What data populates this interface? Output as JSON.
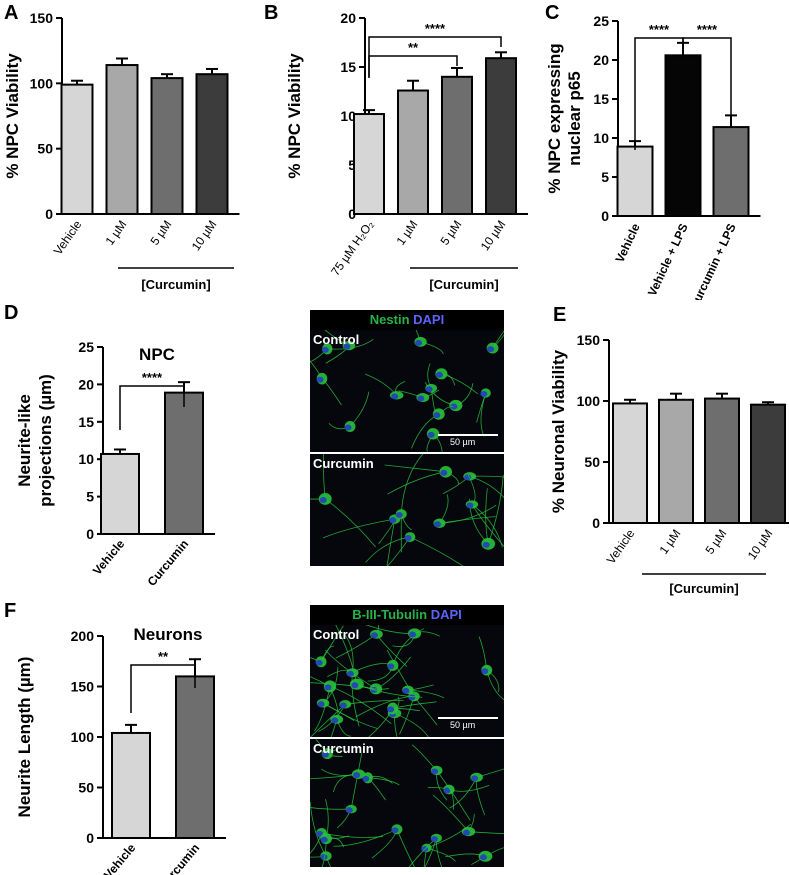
{
  "panels": {
    "A": "A",
    "B": "B",
    "C": "C",
    "D": "D",
    "E": "E",
    "F": "F"
  },
  "micro_D": {
    "header_green": "Nestin",
    "header_blue": "DAPI",
    "top_label": "Control",
    "bottom_label": "Curcumin",
    "scale_label": "50 µm"
  },
  "micro_F": {
    "header_green": "B-III-Tubulin",
    "header_blue": "DAPI",
    "top_label": "Control",
    "bottom_label": "Curcumin",
    "scale_label": "50 µm"
  },
  "colors": {
    "light": "#d6d6d6",
    "mid_light": "#a8a8a8",
    "mid": "#6e6e6e",
    "dark": "#3c3c3c",
    "black": "#050505",
    "nucleus": "#2236c8",
    "neurite": "#28c23c"
  },
  "chart_data": [
    {
      "id": "A",
      "type": "bar",
      "title": "",
      "ylabel": "% NPC Viability",
      "xlabel": "",
      "ylim": [
        0,
        150
      ],
      "yticks": [
        0,
        50,
        100,
        150
      ],
      "categories": [
        "Vehicle",
        "1 µM",
        "5 µM",
        "10 µM"
      ],
      "values": [
        99,
        114,
        104,
        107
      ],
      "errors": [
        3,
        5,
        3,
        4
      ],
      "bar_colors": [
        "#d6d6d6",
        "#a8a8a8",
        "#6e6e6e",
        "#3c3c3c"
      ],
      "bracket_label": "[Curcumin]",
      "significance": []
    },
    {
      "id": "B",
      "type": "bar",
      "title": "",
      "ylabel": "% NPC Viability",
      "xlabel": "",
      "ylim": [
        0,
        20
      ],
      "yticks": [
        0,
        5,
        10,
        15,
        20
      ],
      "categories": [
        "75 µM H₂O₂",
        "1 µM",
        "5 µM",
        "10 µM"
      ],
      "values": [
        10.2,
        12.6,
        14,
        15.9
      ],
      "errors": [
        0.4,
        1.0,
        0.9,
        0.6
      ],
      "bar_colors": [
        "#d6d6d6",
        "#a8a8a8",
        "#6e6e6e",
        "#3c3c3c"
      ],
      "bracket_label": "[Curcumin]",
      "significance": [
        {
          "from": 0,
          "to": 2,
          "label": "**"
        },
        {
          "from": 0,
          "to": 3,
          "label": "****"
        }
      ]
    },
    {
      "id": "C",
      "type": "bar",
      "title": "",
      "ylabel": "% NPC expressing nuclear p65",
      "xlabel": "",
      "ylim": [
        0,
        25
      ],
      "yticks": [
        0,
        5,
        10,
        15,
        20,
        25
      ],
      "categories": [
        "Vehicle",
        "Vehicle + LPS",
        "Curcumin + LPS"
      ],
      "values": [
        8.9,
        20.6,
        11.4
      ],
      "errors": [
        0.7,
        1.6,
        1.5
      ],
      "bar_colors": [
        "#d6d6d6",
        "#050505",
        "#6e6e6e"
      ],
      "bracket_label": "",
      "significance": [
        {
          "from": 0,
          "to": 1,
          "label": "****"
        },
        {
          "from": 1,
          "to": 2,
          "label": "****"
        }
      ]
    },
    {
      "id": "D",
      "type": "bar",
      "title": "NPC",
      "ylabel": "Neurite-like projections (µm)",
      "xlabel": "",
      "ylim": [
        0,
        25
      ],
      "yticks": [
        0,
        5,
        10,
        15,
        20,
        25
      ],
      "categories": [
        "Vehicle",
        "Curcumin"
      ],
      "values": [
        10.7,
        18.9
      ],
      "errors": [
        0.6,
        1.4
      ],
      "bar_colors": [
        "#d6d6d6",
        "#6e6e6e"
      ],
      "bracket_label": "",
      "significance": [
        {
          "from": 0,
          "to": 1,
          "label": "****"
        }
      ]
    },
    {
      "id": "E",
      "type": "bar",
      "title": "",
      "ylabel": "% Neuronal Viability",
      "xlabel": "",
      "ylim": [
        0,
        150
      ],
      "yticks": [
        0,
        50,
        100,
        150
      ],
      "categories": [
        "Vehicle",
        "1 µM",
        "5 µM",
        "10 µM"
      ],
      "values": [
        98,
        101,
        102,
        97
      ],
      "errors": [
        3,
        5,
        4,
        2
      ],
      "bar_colors": [
        "#d6d6d6",
        "#a8a8a8",
        "#6e6e6e",
        "#3c3c3c"
      ],
      "bracket_label": "[Curcumin]",
      "significance": []
    },
    {
      "id": "F",
      "type": "bar",
      "title": "Neurons",
      "ylabel": "Neurite Length (µm)",
      "xlabel": "",
      "ylim": [
        0,
        200
      ],
      "yticks": [
        0,
        50,
        100,
        150,
        200
      ],
      "categories": [
        "Vehicle",
        "Curcumin"
      ],
      "values": [
        104,
        160
      ],
      "errors": [
        8,
        17
      ],
      "bar_colors": [
        "#d6d6d6",
        "#6e6e6e"
      ],
      "bracket_label": "",
      "significance": [
        {
          "from": 0,
          "to": 1,
          "label": "**"
        }
      ]
    }
  ]
}
